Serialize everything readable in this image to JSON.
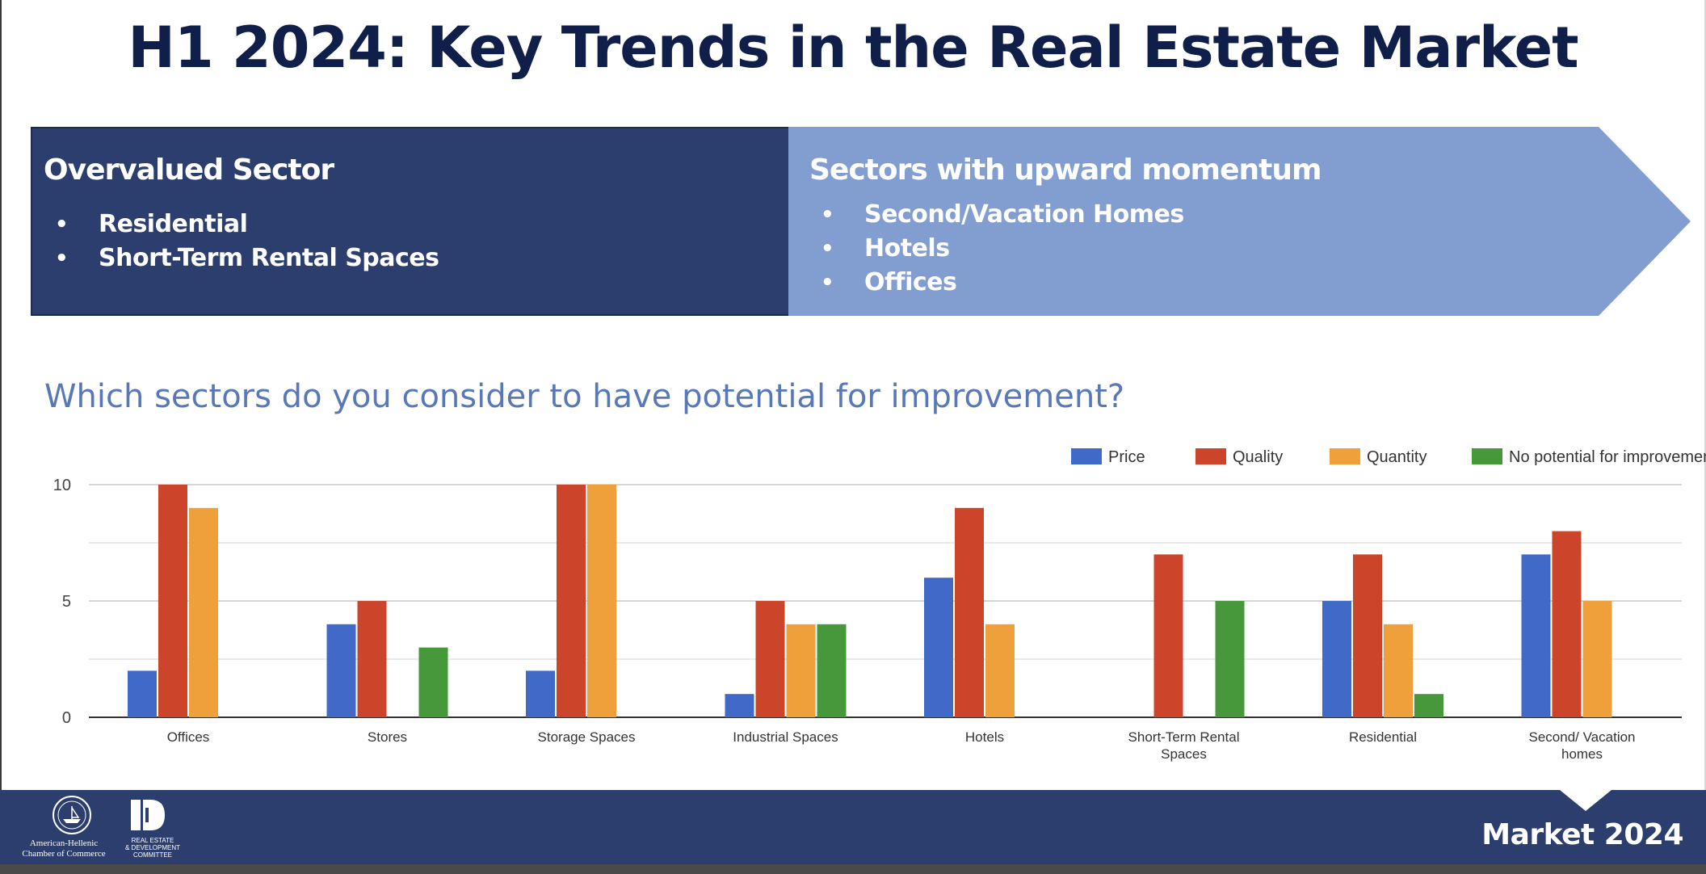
{
  "title": "H1 2024: Key Trends in the Real Estate Market",
  "overvalued": {
    "heading": "Overvalued Sector",
    "items": [
      "Residential",
      "Short-Term Rental Spaces"
    ]
  },
  "upward": {
    "heading": "Sectors with upward momentum",
    "items": [
      "Second/Vacation Homes",
      "Hotels",
      "Offices"
    ]
  },
  "question": "Which sectors do you consider to have potential for improvement?",
  "colors": {
    "navy": "#2c3e6e",
    "light_blue": "#829dd0",
    "price": "#4169c8",
    "quality": "#cc4429",
    "quantity": "#f0a03a",
    "no_potential": "#46983a"
  },
  "chart_data": {
    "type": "bar",
    "title": "",
    "xlabel": "",
    "ylabel": "",
    "ylim": [
      0,
      10
    ],
    "yticks": [
      "0",
      "5",
      "10"
    ],
    "grid": true,
    "legend_position": "top-right",
    "categories": [
      [
        "Offices"
      ],
      [
        "Stores"
      ],
      [
        "Storage Spaces"
      ],
      [
        "Industrial Spaces"
      ],
      [
        "Hotels"
      ],
      [
        "Short-Term Rental",
        "Spaces"
      ],
      [
        "Residential"
      ],
      [
        "Second/ Vacation",
        "homes"
      ]
    ],
    "series": [
      {
        "name": "Price",
        "color": "#4169c8",
        "values": [
          2,
          4,
          2,
          1,
          6,
          0,
          5,
          7
        ]
      },
      {
        "name": "Quality",
        "color": "#cc4429",
        "values": [
          10,
          5,
          10,
          5,
          9,
          7,
          7,
          8
        ]
      },
      {
        "name": "Quantity",
        "color": "#f0a03a",
        "values": [
          9,
          0,
          10,
          4,
          4,
          0,
          4,
          5
        ]
      },
      {
        "name": "No potential for improvement",
        "color": "#46983a",
        "values": [
          0,
          3,
          0,
          4,
          0,
          5,
          1,
          0
        ]
      }
    ]
  },
  "footer": {
    "market": "Market 2024",
    "amcham_line1": "American-Hellenic",
    "amcham_line2": "Chamber of Commerce",
    "redc_line1": "REAL ESTATE",
    "redc_line2": "& DEVELOPMENT",
    "redc_line3": "COMMITTEE"
  }
}
